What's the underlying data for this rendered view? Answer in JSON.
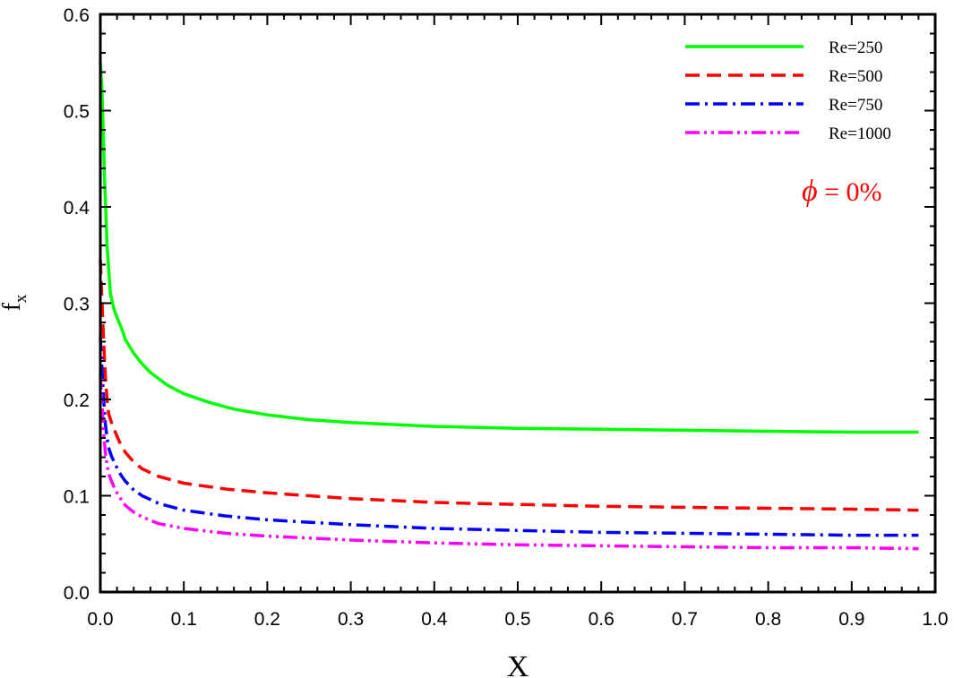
{
  "chart_data": {
    "type": "line",
    "xlabel": "X",
    "ylabel": "f",
    "ylabel_sub": "x",
    "xlim": [
      0.0,
      1.0
    ],
    "ylim": [
      0.0,
      0.6
    ],
    "x_ticks": [
      "0.0",
      "0.1",
      "0.2",
      "0.3",
      "0.4",
      "0.5",
      "0.6",
      "0.7",
      "0.8",
      "0.9",
      "1.0"
    ],
    "y_ticks": [
      "0.0",
      "0.1",
      "0.2",
      "0.3",
      "0.4",
      "0.5",
      "0.6"
    ],
    "grid": false,
    "legend_position": "top-right",
    "annotation": {
      "symbol": "ϕ",
      "text": " = 0%",
      "color": "#ff0000"
    },
    "series": [
      {
        "name": "Re=250",
        "color": "#00ff00",
        "dash": "solid",
        "x": [
          0.0,
          0.002,
          0.005,
          0.008,
          0.012,
          0.016,
          0.02,
          0.025,
          0.03,
          0.04,
          0.05,
          0.06,
          0.08,
          0.1,
          0.13,
          0.16,
          0.2,
          0.25,
          0.3,
          0.4,
          0.5,
          0.6,
          0.7,
          0.8,
          0.9,
          0.98
        ],
        "values": [
          0.55,
          0.52,
          0.43,
          0.36,
          0.31,
          0.295,
          0.285,
          0.275,
          0.262,
          0.248,
          0.237,
          0.228,
          0.215,
          0.206,
          0.197,
          0.19,
          0.184,
          0.179,
          0.176,
          0.172,
          0.17,
          0.169,
          0.168,
          0.167,
          0.166,
          0.166
        ]
      },
      {
        "name": "Re=500",
        "color": "#ff0000",
        "dash": "dashed",
        "x": [
          0.0,
          0.002,
          0.004,
          0.006,
          0.008,
          0.01,
          0.013,
          0.016,
          0.02,
          0.025,
          0.03,
          0.04,
          0.05,
          0.07,
          0.1,
          0.15,
          0.2,
          0.3,
          0.4,
          0.5,
          0.6,
          0.7,
          0.8,
          0.9,
          0.98
        ],
        "values": [
          0.345,
          0.3,
          0.26,
          0.225,
          0.2,
          0.185,
          0.177,
          0.17,
          0.162,
          0.152,
          0.145,
          0.135,
          0.128,
          0.12,
          0.113,
          0.107,
          0.103,
          0.097,
          0.093,
          0.091,
          0.089,
          0.088,
          0.087,
          0.086,
          0.085
        ]
      },
      {
        "name": "Re=750",
        "color": "#0000ff",
        "dash": "dashdot",
        "x": [
          0.0,
          0.002,
          0.004,
          0.006,
          0.008,
          0.01,
          0.013,
          0.016,
          0.02,
          0.025,
          0.03,
          0.04,
          0.05,
          0.07,
          0.1,
          0.15,
          0.2,
          0.3,
          0.4,
          0.5,
          0.6,
          0.7,
          0.8,
          0.9,
          0.98
        ],
        "values": [
          0.265,
          0.23,
          0.2,
          0.175,
          0.16,
          0.15,
          0.142,
          0.136,
          0.129,
          0.121,
          0.115,
          0.106,
          0.1,
          0.092,
          0.085,
          0.079,
          0.075,
          0.07,
          0.066,
          0.064,
          0.062,
          0.061,
          0.06,
          0.059,
          0.059
        ]
      },
      {
        "name": "Re=1000",
        "color": "#ff00ff",
        "dash": "dashdotdot",
        "x": [
          0.0,
          0.002,
          0.004,
          0.006,
          0.008,
          0.01,
          0.013,
          0.016,
          0.02,
          0.025,
          0.03,
          0.04,
          0.05,
          0.07,
          0.1,
          0.15,
          0.2,
          0.3,
          0.4,
          0.5,
          0.6,
          0.7,
          0.8,
          0.9,
          0.98
        ],
        "values": [
          0.225,
          0.195,
          0.165,
          0.145,
          0.132,
          0.123,
          0.116,
          0.11,
          0.103,
          0.096,
          0.09,
          0.083,
          0.078,
          0.071,
          0.066,
          0.061,
          0.058,
          0.054,
          0.051,
          0.049,
          0.048,
          0.047,
          0.046,
          0.046,
          0.045
        ]
      }
    ]
  }
}
